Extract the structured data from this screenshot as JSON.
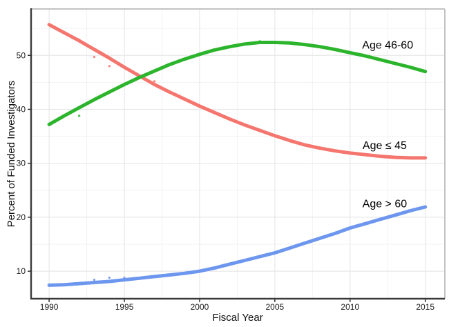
{
  "figure": {
    "background": "#ffffff",
    "panel_border_color": "#c2c2c2",
    "axis_line_color": "#3a3a3a",
    "grid_major_color": "#e7e7e7",
    "grid_minor_color": "#f2f2f2",
    "tick_color": "#333333",
    "text_color": "#111111"
  },
  "chart_data": {
    "type": "line",
    "title": "",
    "xlabel": "Fiscal Year",
    "ylabel": "Percent of Funded Investigators",
    "xlim": [
      1988.8,
      2016.3
    ],
    "ylim": [
      4.9,
      58.6
    ],
    "x_ticks": [
      1990,
      1995,
      2000,
      2005,
      2010,
      2015
    ],
    "y_ticks": [
      10,
      20,
      30,
      40,
      50
    ],
    "grid": "major and minor gridlines, very light gray, on white panel",
    "legend_position": "direct labels beside curves",
    "x": [
      1990,
      1991,
      1992,
      1993,
      1994,
      1995,
      1996,
      1997,
      1998,
      1999,
      2000,
      2001,
      2002,
      2003,
      2004,
      2005,
      2006,
      2007,
      2008,
      2009,
      2010,
      2011,
      2012,
      2013,
      2014,
      2015
    ],
    "series": [
      {
        "name": "Age ≤ 45",
        "slug": "age-le-45",
        "color": "#F4766E",
        "values": [
          55.7,
          54.2,
          52.7,
          51.1,
          49.5,
          47.8,
          46.2,
          44.6,
          43.2,
          41.9,
          40.6,
          39.4,
          38.2,
          37.1,
          36.1,
          35.1,
          34.2,
          33.4,
          32.8,
          32.3,
          31.9,
          31.6,
          31.3,
          31.1,
          31.0,
          31.0
        ],
        "raw_points": [
          [
            1992,
            52.9
          ],
          [
            1993,
            49.7
          ],
          [
            1994,
            48.0
          ],
          [
            1997,
            45.2
          ]
        ],
        "label": {
          "text": "Age ≤ 45",
          "x": 2012.3,
          "y": 33.3
        }
      },
      {
        "name": "Age 46-60",
        "slug": "age-46-60",
        "color": "#2CB52C",
        "values": [
          37.2,
          38.8,
          40.3,
          41.8,
          43.2,
          44.6,
          45.9,
          47.1,
          48.3,
          49.3,
          50.2,
          51.0,
          51.6,
          52.1,
          52.4,
          52.4,
          52.3,
          52.0,
          51.6,
          51.1,
          50.5,
          49.9,
          49.2,
          48.5,
          47.8,
          47.0
        ],
        "raw_points": [
          [
            1992,
            38.8
          ],
          [
            2004,
            52.6
          ]
        ],
        "label": {
          "text": "Age 46-60",
          "x": 2012.5,
          "y": 51.9
        }
      },
      {
        "name": "Age > 60",
        "slug": "age-gt-60",
        "color": "#6D96EE",
        "values": [
          7.4,
          7.5,
          7.7,
          7.9,
          8.1,
          8.4,
          8.7,
          9.0,
          9.3,
          9.6,
          10.0,
          10.6,
          11.3,
          12.0,
          12.7,
          13.4,
          14.3,
          15.2,
          16.1,
          17.0,
          18.0,
          18.8,
          19.6,
          20.4,
          21.2,
          21.9
        ],
        "raw_points": [
          [
            1993,
            8.4
          ],
          [
            1994,
            8.8
          ],
          [
            1995,
            8.8
          ]
        ],
        "label": {
          "text": "Age > 60",
          "x": 2012.3,
          "y": 22.5
        }
      }
    ]
  }
}
